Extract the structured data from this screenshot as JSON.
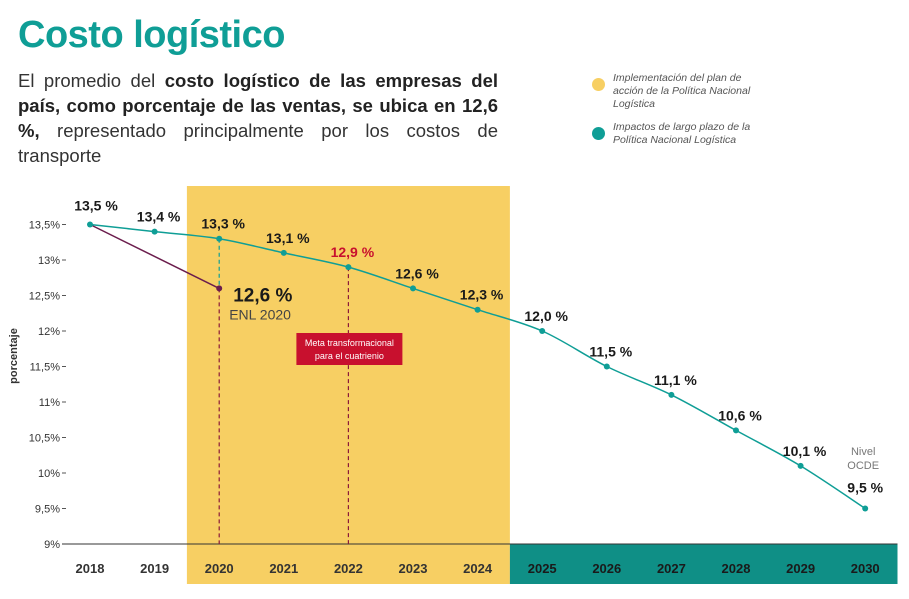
{
  "header": {
    "title": "Costo logístico",
    "subtitle_pre": "El promedio del ",
    "subtitle_bold": "costo logístico de las empresas del país, como porcentaje de las ventas, se ubica en 12,6 %,",
    "subtitle_post": " representado principalmente por los costos de transporte"
  },
  "legend": [
    {
      "text": "Implementación del plan de acción de la Política Nacional Logística",
      "color": "#f7cf63"
    },
    {
      "text": "Impactos de largo plazo de la Política Nacional Logística",
      "color": "#0f9e96"
    }
  ],
  "chart_data": {
    "type": "line",
    "ylabel": "porcentaje",
    "ylim": [
      9,
      13.5
    ],
    "yticks": [
      {
        "v": 13.5,
        "label": "13,5%"
      },
      {
        "v": 13,
        "label": "13%"
      },
      {
        "v": 12.5,
        "label": "12,5%"
      },
      {
        "v": 12,
        "label": "12%"
      },
      {
        "v": 11.5,
        "label": "11,5%"
      },
      {
        "v": 11,
        "label": "11%"
      },
      {
        "v": 10.5,
        "label": "10,5%"
      },
      {
        "v": 10,
        "label": "10%"
      },
      {
        "v": 9.5,
        "label": "9,5%"
      },
      {
        "v": 9,
        "label": "9%"
      }
    ],
    "categories": [
      "2018",
      "2019",
      "2020",
      "2021",
      "2022",
      "2023",
      "2024",
      "2025",
      "2026",
      "2027",
      "2028",
      "2029",
      "2030"
    ],
    "series": [
      {
        "values": [
          13.5,
          13.4,
          13.3,
          13.1,
          12.9,
          12.6,
          12.3,
          12.0,
          11.5,
          11.1,
          10.6,
          10.1,
          9.5
        ],
        "labels": [
          "13,5 %",
          "13,4 %",
          "13,3 %",
          "13,1 %",
          "12,9 %",
          "12,6 %",
          "12,3 %",
          "12,0 %",
          "11,5 %",
          "11,1 %",
          "10,6 %",
          "10,1 %",
          "9,5 %"
        ],
        "color": "#0f9e96"
      },
      {
        "x": [
          "2018",
          "2020"
        ],
        "values": [
          13.5,
          12.6
        ],
        "color": "#6b1d4d"
      }
    ],
    "highlight_label": "12,6 %",
    "highlight_sublabel": "ENL 2020",
    "target_year": "2022",
    "target_label_color": "#c8102e",
    "target_note_line1": "Meta transformacional",
    "target_note_line2": "para el cuatrienio",
    "ocde_line1": "Nivel",
    "ocde_line2": "OCDE",
    "band_implementation": [
      "2020",
      "2024"
    ],
    "band_longterm": [
      "2025",
      "2030"
    ],
    "band_implementation_color": "#f7cf63",
    "band_longterm_color": "#0f8f86"
  }
}
